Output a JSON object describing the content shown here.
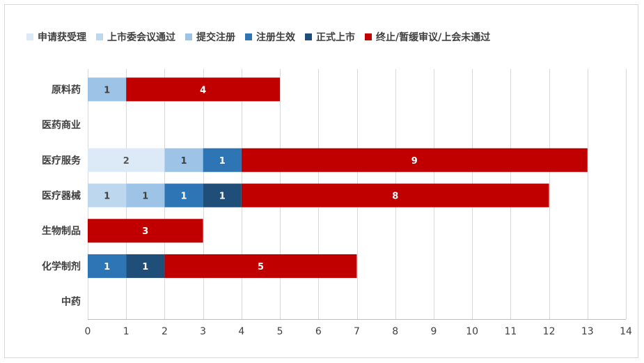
{
  "chart_data": {
    "type": "bar",
    "orientation": "horizontal",
    "stacked": true,
    "title": "",
    "xlabel": "",
    "ylabel": "",
    "xlim": [
      0,
      14
    ],
    "x_ticks": [
      "0",
      "1",
      "2",
      "3",
      "4",
      "5",
      "6",
      "7",
      "8",
      "9",
      "10",
      "11",
      "12",
      "13",
      "14"
    ],
    "categories": [
      "原料药",
      "医药商业",
      "医疗服务",
      "医疗器械",
      "生物制品",
      "化学制剂",
      "中药"
    ],
    "series": [
      {
        "name": "申请获受理",
        "color": "#dce9f6",
        "label_color": "#595959",
        "values": [
          0,
          0,
          2,
          0,
          0,
          0,
          0
        ]
      },
      {
        "name": "上市委会议通过",
        "color": "#bdd7ee",
        "label_color": "#404040",
        "values": [
          0,
          0,
          0,
          1,
          0,
          0,
          0
        ]
      },
      {
        "name": "提交注册",
        "color": "#9dc3e6",
        "label_color": "#404040",
        "values": [
          1,
          0,
          1,
          1,
          0,
          0,
          0
        ]
      },
      {
        "name": "注册生效",
        "color": "#2e75b6",
        "label_color": "#ffffff",
        "values": [
          0,
          0,
          1,
          1,
          0,
          1,
          0
        ]
      },
      {
        "name": "正式上市",
        "color": "#1f4e79",
        "label_color": "#ffffff",
        "values": [
          0,
          0,
          0,
          1,
          0,
          1,
          0
        ]
      },
      {
        "name": "终止/暂缓审议/上会未通过",
        "color": "#c00000",
        "label_color": "#ffffff",
        "values": [
          4,
          0,
          9,
          8,
          3,
          5,
          0
        ]
      }
    ],
    "grid": true,
    "legend_position": "top-left"
  }
}
